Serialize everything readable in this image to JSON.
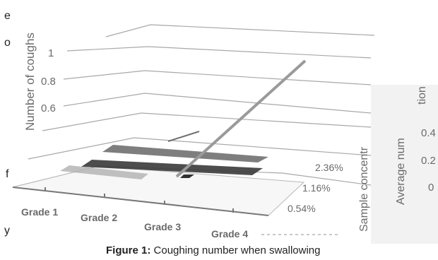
{
  "chart_data": {
    "type": "bar",
    "zlabel": "Number of coughs",
    "right_axis_label_1": "Sample concentr",
    "right_axis_label_2": "Average num",
    "right_axis_label_3": "tion",
    "ztick_labels": [
      "1",
      "0.8",
      "0.6"
    ],
    "right_tick_labels": [
      "0.4",
      "0.2",
      "0"
    ],
    "categories": [
      "Grade 1",
      "Grade 2",
      "Grade 3",
      "Grade 4"
    ],
    "concentrations": [
      "2.36%",
      "1.16%",
      "0.54%"
    ],
    "series": [
      {
        "values": [
          0,
          0,
          0,
          0.2
        ]
      },
      {
        "values": [
          0,
          0,
          0,
          0.2
        ]
      },
      {
        "values": [
          0,
          0,
          0,
          1
        ]
      }
    ]
  },
  "caption": {
    "prefix": "Figure 1:",
    "text": "Coughing number when swallowing"
  },
  "left_edge_letters": [
    "e",
    "o",
    "f",
    "y"
  ]
}
